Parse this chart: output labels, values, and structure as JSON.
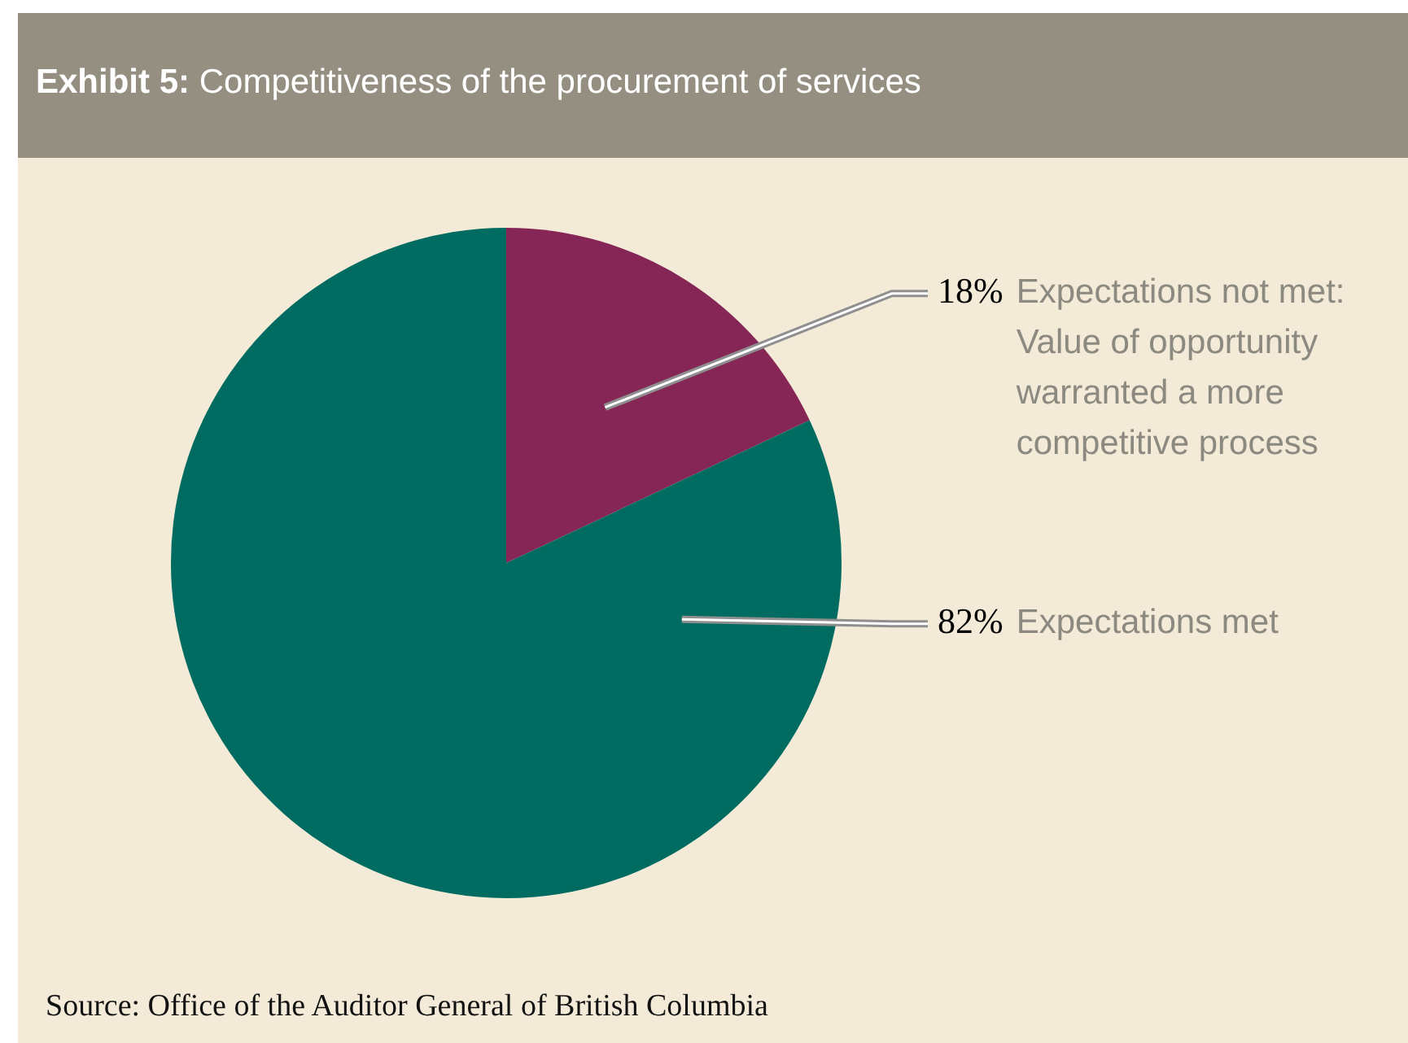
{
  "chart_data": {
    "type": "pie",
    "title": "Exhibit 5: Competitiveness of the procurement of services",
    "categories": [
      "Expectations not met: Value of opportunity warranted a more competitive process",
      "Expectations met"
    ],
    "values": [
      18,
      82
    ],
    "value_labels": [
      "18%",
      "82%"
    ],
    "colors": [
      "#862657",
      "#006b60"
    ],
    "annotations": [
      "Source: Office of the Auditor General of British Columbia"
    ]
  }
}
